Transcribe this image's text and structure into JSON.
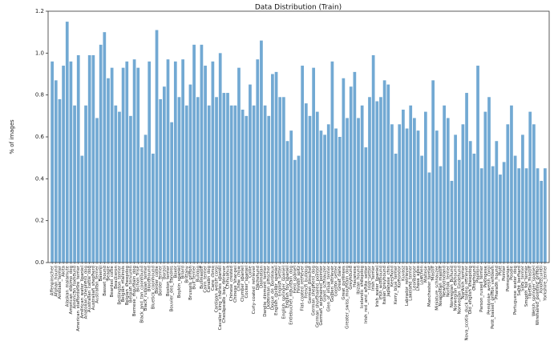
{
  "chart_data": {
    "type": "bar",
    "title": "Data Distribution (Train)",
    "y_label": "% of images",
    "color": "#72a9d3",
    "ylim": [
      0,
      1.2
    ],
    "yticks": [
      {
        "value": 0,
        "label": "0.0"
      },
      {
        "value": 0.2,
        "label": "0.2"
      },
      {
        "value": 0.4,
        "label": "0.4"
      },
      {
        "value": 0.6,
        "label": "0.6"
      },
      {
        "value": 0.8,
        "label": "0.8"
      },
      {
        "value": 1.0,
        "label": "1.0"
      },
      {
        "value": 1.2,
        "label": "1.2"
      }
    ],
    "categories": [
      "Affenpinscher",
      "Afghan_hound",
      "Airedale_terrier",
      "Akita",
      "Alaskan_malamute",
      "American_eskimo_dog",
      "American_foxhound",
      "American_staffordshire_terrier",
      "American_water_spaniel",
      "Anatolian_shepherd_dog",
      "Australian_cattle_dog",
      "Australian_shepherd",
      "Australian_terrier",
      "Basenji",
      "Basset_hound",
      "Beagle",
      "Bearded_collie",
      "Beauceron",
      "Bedlington_terrier",
      "Belgian_malinois",
      "Belgian_sheepdog",
      "Belgian_tervuren",
      "Bernese_mountain_dog",
      "Bichon_frise",
      "Black_and_tan_coonhound",
      "Black_russian_terrier",
      "Bloodhound",
      "Bluetick_coonhound",
      "Border_collie",
      "Border_terrier",
      "Borzoi",
      "Boston_terrier",
      "Bouvier_des_flandres",
      "Boxer",
      "Boykin_spaniel",
      "Briard",
      "Brittany",
      "Brussels_griffon",
      "Bull_terrier",
      "Bulldog",
      "Bullmastiff",
      "Cairn_terrier",
      "Canaan_dog",
      "Cane_corso",
      "Cardigan_welsh_corgi",
      "Cavalier_king_charles_spaniel",
      "Chesapeake_bay_retriever",
      "Chihuahua",
      "Chinese_crested",
      "Chinese_shar-pei",
      "Chow_chow",
      "Clumber_spaniel",
      "Cocker_spaniel",
      "Collie",
      "Curly-coated_retriever",
      "Dachshund",
      "Dalmatian",
      "Dandie_dinmont_terrier",
      "Doberman_pinscher",
      "Dogue_de_bordeaux",
      "English_cocker_spaniel",
      "English_setter",
      "English_springer_spaniel",
      "English_toy_spaniel",
      "Entlebucher_mountain_dog",
      "Field_spaniel",
      "Finnish_spitz",
      "Flat-coated_retriever",
      "French_bulldog",
      "German_pinscher",
      "German_shepherd_dog",
      "German_shorthaired_pointer",
      "German_wirehaired_pointer",
      "Giant_schnauzer",
      "Glen_of_imaal_terrier",
      "Golden_retriever",
      "Gordon_setter",
      "Great_dane",
      "Great_pyrenees",
      "Greater_swiss_mountain_dog",
      "Greyhound",
      "Havanese",
      "Ibizan_hound",
      "Icelandic_sheepdog",
      "Irish_red_and_white_setter",
      "Irish_setter",
      "Irish_terrier",
      "Irish_water_spaniel",
      "Irish_wolfhound",
      "Italian_greyhound",
      "Japanese_chin",
      "Keeshond",
      "Kerry_blue_terrier",
      "Komondor",
      "Kuvasz",
      "Labrador_retriever",
      "Lakeland_terrier",
      "Leonberger",
      "Lhasa_apso",
      "Lowchen",
      "Maltese",
      "Manchester_terrier",
      "Mastiff",
      "Miniature_schnauzer",
      "Neapolitan_mastiff",
      "Newfoundland",
      "Norfolk_terrier",
      "Norwegian_buhund",
      "Norwegian_elkhound",
      "Norwegian_lundehund",
      "Norwich_terrier",
      "Nova_scotia_duck_tolling_retriever",
      "Old_english_sheepdog",
      "Otterhound",
      "Papillon",
      "Parson_russell_terrier",
      "Pekingese",
      "Pembroke_welsh_corgi",
      "Petit_basset_griffon_vendeen",
      "Pharaoh_hound",
      "Plott",
      "Pointer",
      "Pomeranian",
      "Poodle",
      "Portuguese_water_dog",
      "Saint_bernard",
      "Silky_terrier",
      "Smooth_fox_terrier",
      "Tibetan_mastiff",
      "Welsh_springer_spaniel",
      "Wirehaired_pointing_griffon",
      "Xoloitzcuintli",
      "Yorkshire_terrier"
    ],
    "values": [
      0.96,
      0.87,
      0.78,
      0.94,
      1.15,
      0.96,
      0.75,
      0.99,
      0.51,
      0.75,
      0.99,
      0.99,
      0.69,
      1.04,
      1.1,
      0.88,
      0.93,
      0.75,
      0.72,
      0.93,
      0.96,
      0.7,
      0.97,
      0.93,
      0.55,
      0.61,
      0.96,
      0.52,
      1.11,
      0.78,
      0.84,
      0.97,
      0.67,
      0.96,
      0.79,
      0.97,
      0.75,
      0.85,
      1.04,
      0.79,
      1.04,
      0.94,
      0.75,
      0.96,
      0.79,
      1.0,
      0.81,
      0.81,
      0.75,
      0.75,
      0.93,
      0.73,
      0.7,
      0.85,
      0.75,
      0.97,
      1.06,
      0.75,
      0.7,
      0.9,
      0.91,
      0.79,
      0.79,
      0.58,
      0.63,
      0.49,
      0.51,
      0.94,
      0.76,
      0.7,
      0.93,
      0.72,
      0.63,
      0.61,
      0.66,
      0.96,
      0.64,
      0.6,
      0.88,
      0.69,
      0.84,
      0.91,
      0.69,
      0.75,
      0.55,
      0.79,
      0.99,
      0.77,
      0.79,
      0.87,
      0.85,
      0.66,
      0.52,
      0.66,
      0.73,
      0.64,
      0.75,
      0.69,
      0.63,
      0.51,
      0.72,
      0.43,
      0.87,
      0.63,
      0.46,
      0.75,
      0.69,
      0.39,
      0.61,
      0.49,
      0.66,
      0.81,
      0.58,
      0.52,
      0.94,
      0.45,
      0.72,
      0.79,
      0.46,
      0.58,
      0.42,
      0.48,
      0.66,
      0.75,
      0.51,
      0.45,
      0.61,
      0.45,
      0.72,
      0.66,
      0.45,
      0.39,
      0.45
    ]
  }
}
